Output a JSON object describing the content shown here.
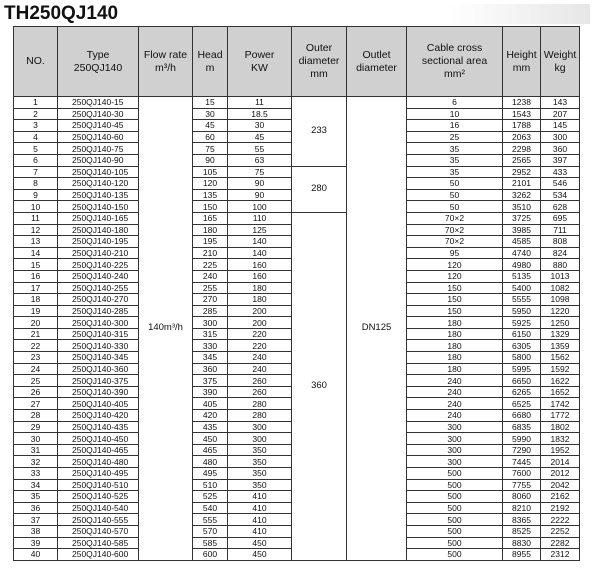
{
  "title": "TH250QJ140",
  "headers": {
    "no": "NO.",
    "type": "Type\n250QJ140",
    "flow": "Flow rate\nm³/h",
    "head": "Head\nm",
    "power": "Power\nKW",
    "outer": "Outer\ndiameter\nmm",
    "outlet": "Outlet\ndiameter",
    "cable": "Cable cross\nsectional area\nmm²",
    "height": "Height\nmm",
    "weight": "Weight\nkg"
  },
  "flow_rate": "140m³/h",
  "outlet_diameter": "DN125",
  "outer_groups": [
    {
      "value": "233",
      "rows": 6
    },
    {
      "value": "280",
      "rows": 4
    },
    {
      "value": "360",
      "rows": 30
    }
  ],
  "rows": [
    {
      "no": "1",
      "type": "250QJ140-15",
      "head": "15",
      "power": "11",
      "cable": "6",
      "height": "1238",
      "weight": "143"
    },
    {
      "no": "2",
      "type": "250QJ140-30",
      "head": "30",
      "power": "18.5",
      "cable": "10",
      "height": "1543",
      "weight": "207"
    },
    {
      "no": "3",
      "type": "250QJ140-45",
      "head": "45",
      "power": "30",
      "cable": "16",
      "height": "1788",
      "weight": "145"
    },
    {
      "no": "4",
      "type": "250QJ140-60",
      "head": "60",
      "power": "45",
      "cable": "25",
      "height": "2063",
      "weight": "300"
    },
    {
      "no": "5",
      "type": "250QJ140-75",
      "head": "75",
      "power": "55",
      "cable": "35",
      "height": "2298",
      "weight": "360"
    },
    {
      "no": "6",
      "type": "250QJ140-90",
      "head": "90",
      "power": "63",
      "cable": "35",
      "height": "2565",
      "weight": "397"
    },
    {
      "no": "7",
      "type": "250QJ140-105",
      "head": "105",
      "power": "75",
      "cable": "35",
      "height": "2952",
      "weight": "433"
    },
    {
      "no": "8",
      "type": "250QJ140-120",
      "head": "120",
      "power": "90",
      "cable": "50",
      "height": "2101",
      "weight": "546"
    },
    {
      "no": "9",
      "type": "250QJ140-135",
      "head": "135",
      "power": "90",
      "cable": "50",
      "height": "3262",
      "weight": "534"
    },
    {
      "no": "10",
      "type": "250QJ140-150",
      "head": "150",
      "power": "100",
      "cable": "50",
      "height": "3510",
      "weight": "628"
    },
    {
      "no": "11",
      "type": "250QJ140-165",
      "head": "165",
      "power": "110",
      "cable": "70×2",
      "height": "3725",
      "weight": "695"
    },
    {
      "no": "12",
      "type": "250QJ140-180",
      "head": "180",
      "power": "125",
      "cable": "70×2",
      "height": "3985",
      "weight": "711"
    },
    {
      "no": "13",
      "type": "250QJ140-195",
      "head": "195",
      "power": "140",
      "cable": "70×2",
      "height": "4585",
      "weight": "808"
    },
    {
      "no": "14",
      "type": "250QJ140-210",
      "head": "210",
      "power": "140",
      "cable": "95",
      "height": "4740",
      "weight": "824"
    },
    {
      "no": "15",
      "type": "250QJ140-225",
      "head": "225",
      "power": "160",
      "cable": "120",
      "height": "4980",
      "weight": "880"
    },
    {
      "no": "16",
      "type": "250QJ140-240",
      "head": "240",
      "power": "160",
      "cable": "120",
      "height": "5135",
      "weight": "1013"
    },
    {
      "no": "17",
      "type": "250QJ140-255",
      "head": "255",
      "power": "180",
      "cable": "150",
      "height": "5400",
      "weight": "1082"
    },
    {
      "no": "18",
      "type": "250QJ140-270",
      "head": "270",
      "power": "180",
      "cable": "150",
      "height": "5555",
      "weight": "1098"
    },
    {
      "no": "19",
      "type": "250QJ140-285",
      "head": "285",
      "power": "200",
      "cable": "150",
      "height": "5950",
      "weight": "1220"
    },
    {
      "no": "20",
      "type": "250QJ140-300",
      "head": "300",
      "power": "200",
      "cable": "180",
      "height": "5925",
      "weight": "1250"
    },
    {
      "no": "21",
      "type": "250QJ140-315",
      "head": "315",
      "power": "220",
      "cable": "180",
      "height": "6150",
      "weight": "1329"
    },
    {
      "no": "22",
      "type": "250QJ140-330",
      "head": "330",
      "power": "220",
      "cable": "180",
      "height": "6305",
      "weight": "1359"
    },
    {
      "no": "23",
      "type": "250QJ140-345",
      "head": "345",
      "power": "240",
      "cable": "180",
      "height": "5800",
      "weight": "1562"
    },
    {
      "no": "24",
      "type": "250QJ140-360",
      "head": "360",
      "power": "240",
      "cable": "180",
      "height": "5995",
      "weight": "1592"
    },
    {
      "no": "25",
      "type": "250QJ140-375",
      "head": "375",
      "power": "260",
      "cable": "240",
      "height": "6650",
      "weight": "1622"
    },
    {
      "no": "26",
      "type": "250QJ140-390",
      "head": "390",
      "power": "260",
      "cable": "240",
      "height": "6265",
      "weight": "1652"
    },
    {
      "no": "27",
      "type": "250QJ140-405",
      "head": "405",
      "power": "280",
      "cable": "240",
      "height": "6525",
      "weight": "1742"
    },
    {
      "no": "28",
      "type": "250QJ140-420",
      "head": "420",
      "power": "280",
      "cable": "240",
      "height": "6680",
      "weight": "1772"
    },
    {
      "no": "29",
      "type": "250QJ140-435",
      "head": "435",
      "power": "300",
      "cable": "300",
      "height": "6835",
      "weight": "1802"
    },
    {
      "no": "30",
      "type": "250QJ140-450",
      "head": "450",
      "power": "300",
      "cable": "300",
      "height": "5990",
      "weight": "1832"
    },
    {
      "no": "31",
      "type": "250QJ140-465",
      "head": "465",
      "power": "350",
      "cable": "300",
      "height": "7290",
      "weight": "1952"
    },
    {
      "no": "32",
      "type": "250QJ140-480",
      "head": "480",
      "power": "350",
      "cable": "300",
      "height": "7445",
      "weight": "2014"
    },
    {
      "no": "33",
      "type": "250QJ140-495",
      "head": "495",
      "power": "350",
      "cable": "500",
      "height": "7600",
      "weight": "2012"
    },
    {
      "no": "34",
      "type": "250QJ140-510",
      "head": "510",
      "power": "350",
      "cable": "500",
      "height": "7755",
      "weight": "2042"
    },
    {
      "no": "35",
      "type": "250QJ140-525",
      "head": "525",
      "power": "410",
      "cable": "500",
      "height": "8060",
      "weight": "2162"
    },
    {
      "no": "36",
      "type": "250QJ140-540",
      "head": "540",
      "power": "410",
      "cable": "500",
      "height": "8210",
      "weight": "2192"
    },
    {
      "no": "37",
      "type": "250QJ140-555",
      "head": "555",
      "power": "410",
      "cable": "500",
      "height": "8365",
      "weight": "2222"
    },
    {
      "no": "38",
      "type": "250QJ140-570",
      "head": "570",
      "power": "410",
      "cable": "500",
      "height": "8525",
      "weight": "2252"
    },
    {
      "no": "39",
      "type": "250QJ140-585",
      "head": "585",
      "power": "450",
      "cable": "500",
      "height": "8830",
      "weight": "2282"
    },
    {
      "no": "40",
      "type": "250QJ140-600",
      "head": "600",
      "power": "450",
      "cable": "500",
      "height": "8955",
      "weight": "2312"
    }
  ]
}
